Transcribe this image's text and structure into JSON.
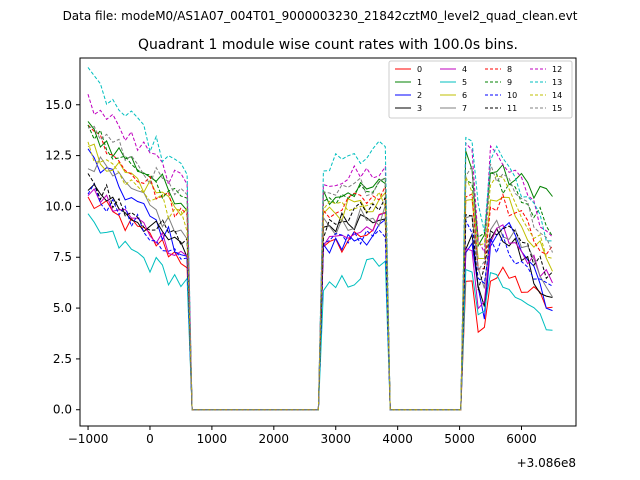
{
  "chart_data": {
    "type": "line",
    "suptitle": "Data file: modeM0/AS1A07_004T01_9000003230_21842cztM0_level2_quad_clean.evt",
    "title": "Quadrant 1 module wise count rates with 100.0s bins.",
    "xlabel": "",
    "ylabel": "",
    "x_offset_label": "+3.086e8",
    "xlim": [
      -1130,
      6880
    ],
    "ylim": [
      -0.8,
      17.3
    ],
    "x_ticks": [
      -1000,
      0,
      1000,
      2000,
      3000,
      4000,
      5000,
      6000
    ],
    "y_ticks": [
      0.0,
      2.5,
      5.0,
      7.5,
      10.0,
      12.5,
      15.0
    ],
    "y_tick_labels": [
      "0.0",
      "2.5",
      "5.0",
      "7.5",
      "10.0",
      "12.5",
      "15.0"
    ],
    "legend_position": "top-right",
    "segments": [
      {
        "x_start": -1000,
        "x_end": 600
      },
      {
        "x_start": 2800,
        "x_end": 3800
      },
      {
        "x_start": 5100,
        "x_end": 6500
      }
    ],
    "series": [
      {
        "name": "0",
        "color": "#ff0000",
        "dash": "solid",
        "levels": [
          10.3,
          7.3,
          7.7,
          9.3,
          6.4,
          6.5,
          5.0
        ]
      },
      {
        "name": "1",
        "color": "#008000",
        "dash": "solid",
        "levels": [
          13.8,
          10.2,
          10.6,
          11.0,
          12.5,
          11.4,
          10.6
        ]
      },
      {
        "name": "2",
        "color": "#0000ff",
        "dash": "solid",
        "levels": [
          12.5,
          7.6,
          7.8,
          9.0,
          7.4,
          9.0,
          4.8
        ]
      },
      {
        "name": "3",
        "color": "#000000",
        "dash": "solid",
        "levels": [
          11.1,
          7.7,
          9.0,
          9.8,
          8.3,
          8.5,
          5.0
        ]
      },
      {
        "name": "4",
        "color": "#bf00bf",
        "dash": "solid",
        "levels": [
          10.8,
          7.6,
          8.2,
          9.2,
          7.8,
          8.7,
          6.0
        ]
      },
      {
        "name": "5",
        "color": "#00bfbf",
        "dash": "solid",
        "levels": [
          9.1,
          6.1,
          5.6,
          7.5,
          6.5,
          6.3,
          4.1
        ]
      },
      {
        "name": "6",
        "color": "#bfbf00",
        "dash": "solid",
        "levels": [
          12.8,
          9.8,
          9.6,
          10.2,
          10.4,
          10.2,
          7.0
        ]
      },
      {
        "name": "7",
        "color": "#808080",
        "dash": "solid",
        "levels": [
          12.4,
          8.4,
          9.0,
          9.6,
          9.5,
          8.9,
          6.0
        ]
      },
      {
        "name": "8",
        "color": "#ff0000",
        "dash": "dashed",
        "levels": [
          13.9,
          9.4,
          9.9,
          10.7,
          11.0,
          10.0,
          7.6
        ]
      },
      {
        "name": "9",
        "color": "#008000",
        "dash": "dashed",
        "levels": [
          13.7,
          10.0,
          10.4,
          10.9,
          11.3,
          11.0,
          9.0
        ]
      },
      {
        "name": "10",
        "color": "#0000ff",
        "dash": "dashed",
        "levels": [
          11.0,
          7.2,
          8.0,
          9.0,
          8.8,
          8.0,
          6.0
        ]
      },
      {
        "name": "11",
        "color": "#000000",
        "dash": "dashed",
        "levels": [
          11.3,
          8.0,
          8.9,
          10.3,
          9.6,
          8.7,
          6.6
        ]
      },
      {
        "name": "12",
        "color": "#bf00bf",
        "dash": "dashed",
        "levels": [
          15.2,
          10.8,
          11.3,
          11.8,
          13.0,
          12.1,
          8.5
        ]
      },
      {
        "name": "13",
        "color": "#00bfbf",
        "dash": "dashed",
        "levels": [
          16.3,
          11.4,
          11.9,
          12.8,
          13.5,
          12.0,
          8.0
        ]
      },
      {
        "name": "14",
        "color": "#bfbf00",
        "dash": "dashed",
        "levels": [
          12.9,
          9.2,
          9.7,
          10.4,
          11.0,
          11.0,
          7.2
        ]
      },
      {
        "name": "15",
        "color": "#808080",
        "dash": "dashed",
        "levels": [
          14.0,
          10.2,
          10.3,
          11.4,
          12.0,
          11.5,
          8.0
        ]
      }
    ]
  }
}
